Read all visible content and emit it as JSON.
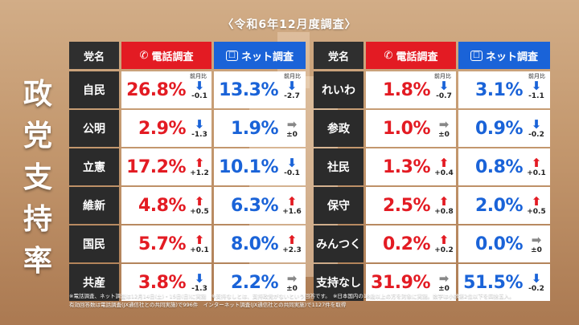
{
  "subtitle": "〈令和6年12月度調査〉",
  "title_chars": [
    "政",
    "党",
    "支",
    "持",
    "率"
  ],
  "headers": {
    "party": "党名",
    "phone": "電話調査",
    "net": "ネット調査"
  },
  "prev_month_label": "前月比",
  "left_rows": [
    {
      "party": "自民",
      "phone": "26.8%",
      "phone_dir": "down",
      "phone_delta": "-0.1",
      "net": "13.3%",
      "net_dir": "down",
      "net_delta": "-2.7"
    },
    {
      "party": "公明",
      "phone": "2.9%",
      "phone_dir": "down",
      "phone_delta": "-1.3",
      "net": "1.9%",
      "net_dir": "flat",
      "net_delta": "±0"
    },
    {
      "party": "立憲",
      "phone": "17.2%",
      "phone_dir": "up",
      "phone_delta": "+1.2",
      "net": "10.1%",
      "net_dir": "down",
      "net_delta": "-0.1"
    },
    {
      "party": "維新",
      "phone": "4.8%",
      "phone_dir": "up",
      "phone_delta": "+0.5",
      "net": "6.3%",
      "net_dir": "up",
      "net_delta": "+1.6"
    },
    {
      "party": "国民",
      "phone": "5.7%",
      "phone_dir": "up",
      "phone_delta": "+0.1",
      "net": "8.0%",
      "net_dir": "up",
      "net_delta": "+2.3"
    },
    {
      "party": "共産",
      "phone": "3.8%",
      "phone_dir": "down",
      "phone_delta": "-1.3",
      "net": "2.2%",
      "net_dir": "flat",
      "net_delta": "±0"
    }
  ],
  "right_rows": [
    {
      "party": "れいわ",
      "phone": "1.8%",
      "phone_dir": "down",
      "phone_delta": "-0.7",
      "net": "3.1%",
      "net_dir": "down",
      "net_delta": "-1.1"
    },
    {
      "party": "参政",
      "phone": "1.0%",
      "phone_dir": "flat",
      "phone_delta": "±0",
      "net": "0.9%",
      "net_dir": "down",
      "net_delta": "-0.2"
    },
    {
      "party": "社民",
      "phone": "1.3%",
      "phone_dir": "up",
      "phone_delta": "+0.4",
      "net": "0.8%",
      "net_dir": "up",
      "net_delta": "+0.1"
    },
    {
      "party": "保守",
      "phone": "2.5%",
      "phone_dir": "up",
      "phone_delta": "+0.8",
      "net": "2.0%",
      "net_dir": "up",
      "net_delta": "+0.5"
    },
    {
      "party": "みんつく",
      "phone": "0.2%",
      "phone_dir": "up",
      "phone_delta": "+0.2",
      "net": "0.0%",
      "net_dir": "flat",
      "net_delta": "±0"
    },
    {
      "party": "支持なし",
      "phone": "31.9%",
      "phone_dir": "flat",
      "phone_delta": "±0",
      "net": "51.5%",
      "net_dir": "down",
      "net_delta": "-0.2"
    }
  ],
  "footnotes": [
    "※電話調査、ネット調査は12月14日(土)・15日(日)に実施　※支持なしとは、支持政党がないという回答です。　※日本国内の18歳以上の方を対象に実施。数字は小数第2位以下を四捨五入。",
    "有効回答数は電話調査(JX通信社との共同実施)で996件　インターネット調査(JX通信社との共同実施)で1127件を取得"
  ],
  "colors": {
    "phone": "#e31b23",
    "net": "#1a63d8",
    "party_bg": "#2b2b2b"
  }
}
